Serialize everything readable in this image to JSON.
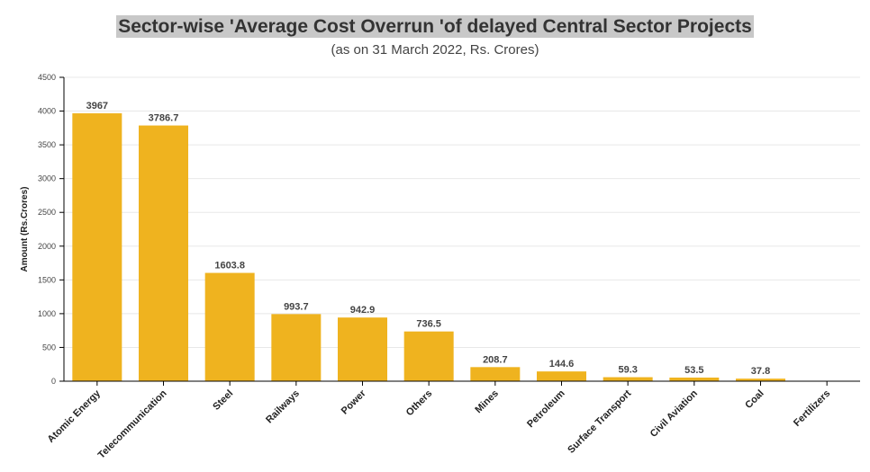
{
  "chart_data": {
    "type": "bar",
    "title": "Sector-wise 'Average Cost Overrun 'of delayed Central Sector Projects",
    "subtitle": "(as on 31 March 2022, Rs. Crores)",
    "xlabel": "",
    "ylabel": "Amount (Rs.Crores)",
    "ylim": [
      0,
      4500
    ],
    "yticks": [
      0,
      500,
      1000,
      1500,
      2000,
      2500,
      3000,
      3500,
      4000,
      4500
    ],
    "grid": true,
    "bar_color": "#EFB31F",
    "categories": [
      "Atomic Energy",
      "Telecommunication",
      "Steel",
      "Railways",
      "Power",
      "Others",
      "Mines",
      "Petroleum",
      "Surface Transport",
      "Civil Aviation",
      "Coal",
      "Fertilizers"
    ],
    "values": [
      3967,
      3786.7,
      1603.8,
      993.7,
      942.9,
      736.5,
      208.7,
      144.6,
      59.3,
      53.5,
      37.8,
      null
    ]
  }
}
